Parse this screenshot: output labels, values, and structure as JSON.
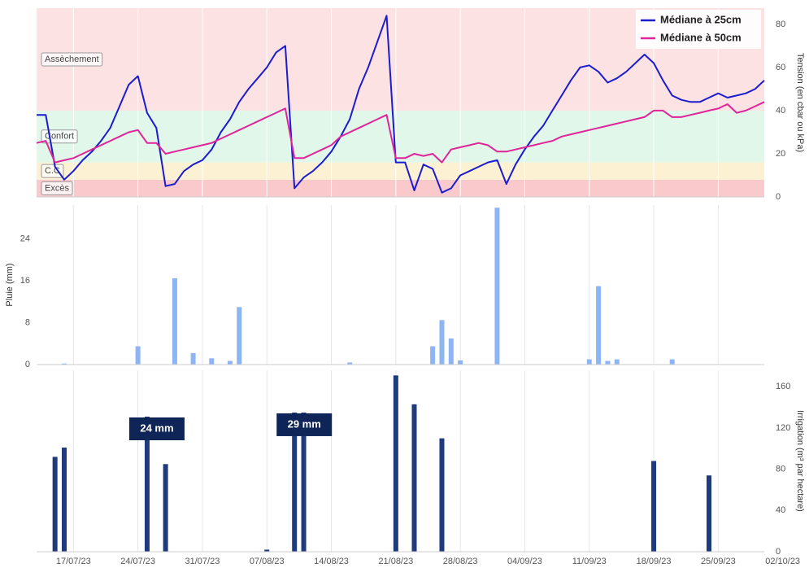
{
  "chart_data": [
    {
      "type": "line",
      "ylabel": "Tension (en cbar ou kPa)",
      "yaxis": "right",
      "legend": "upper right",
      "xlim": [
        "2023-07-13",
        "2023-09-30"
      ],
      "ylim": [
        0,
        87.5
      ],
      "yticks": [
        0,
        20,
        40,
        60,
        80
      ],
      "zones": [
        {
          "label": "Excès",
          "from": 0,
          "color": "#f9c9cc"
        },
        {
          "label": "C.C",
          "from": 8,
          "color": "#fdf1d4"
        },
        {
          "label": "Confort",
          "from": 16,
          "color": "#e0f7ea"
        },
        {
          "label": "Assèchement",
          "from": 40,
          "color": "#fde2e3"
        }
      ],
      "x": [
        "2023-07-13",
        "2023-07-14",
        "2023-07-15",
        "2023-07-16",
        "2023-07-17",
        "2023-07-18",
        "2023-07-19",
        "2023-07-20",
        "2023-07-21",
        "2023-07-22",
        "2023-07-23",
        "2023-07-24",
        "2023-07-25",
        "2023-07-26",
        "2023-07-27",
        "2023-07-28",
        "2023-07-29",
        "2023-07-30",
        "2023-07-31",
        "2023-08-01",
        "2023-08-02",
        "2023-08-03",
        "2023-08-04",
        "2023-08-05",
        "2023-08-06",
        "2023-08-07",
        "2023-08-08",
        "2023-08-09",
        "2023-08-10",
        "2023-08-11",
        "2023-08-12",
        "2023-08-13",
        "2023-08-14",
        "2023-08-15",
        "2023-08-16",
        "2023-08-17",
        "2023-08-18",
        "2023-08-19",
        "2023-08-20",
        "2023-08-21",
        "2023-08-22",
        "2023-08-23",
        "2023-08-24",
        "2023-08-25",
        "2023-08-26",
        "2023-08-27",
        "2023-08-28",
        "2023-08-29",
        "2023-08-30",
        "2023-08-31",
        "2023-09-01",
        "2023-09-02",
        "2023-09-03",
        "2023-09-04",
        "2023-09-05",
        "2023-09-06",
        "2023-09-07",
        "2023-09-08",
        "2023-09-09",
        "2023-09-10",
        "2023-09-11",
        "2023-09-12",
        "2023-09-13",
        "2023-09-14",
        "2023-09-15",
        "2023-09-16",
        "2023-09-17",
        "2023-09-18",
        "2023-09-19",
        "2023-09-20",
        "2023-09-21",
        "2023-09-22",
        "2023-09-23",
        "2023-09-24",
        "2023-09-25",
        "2023-09-26",
        "2023-09-27",
        "2023-09-28",
        "2023-09-29",
        "2023-09-30"
      ],
      "series": [
        {
          "name": "Médiane à 25cm",
          "color": "#1c1ccf",
          "values": [
            38,
            38,
            14,
            8,
            12,
            17,
            21,
            26,
            32,
            42,
            52,
            56,
            39,
            32,
            5,
            6,
            12,
            15,
            17,
            22,
            30,
            36,
            44,
            50,
            55,
            60,
            67,
            70,
            4,
            9,
            12,
            16,
            21,
            28,
            36,
            50,
            60,
            72,
            84,
            16,
            16,
            3,
            15,
            13,
            2,
            4,
            10,
            12,
            14,
            16,
            17,
            6,
            15,
            22,
            28,
            33,
            40,
            47,
            54,
            60,
            61,
            58,
            53,
            55,
            58,
            62,
            66,
            62,
            54,
            47,
            45,
            44,
            44,
            46,
            48,
            46,
            47,
            48,
            50,
            54
          ]
        },
        {
          "name": "Médiane à 50cm",
          "color": "#e0249a",
          "values": [
            25,
            26,
            16,
            17,
            18,
            20,
            22,
            24,
            26,
            28,
            30,
            31,
            25,
            25,
            20,
            21,
            22,
            23,
            24,
            25,
            27,
            29,
            31,
            33,
            35,
            37,
            39,
            41,
            18,
            18,
            20,
            22,
            24,
            28,
            30,
            32,
            34,
            36,
            38,
            18,
            18,
            20,
            19,
            20,
            16,
            22,
            23,
            24,
            25,
            24,
            21,
            21,
            22,
            23,
            24,
            25,
            26,
            28,
            29,
            30,
            31,
            32,
            33,
            34,
            35,
            36,
            37,
            40,
            40,
            37,
            37,
            38,
            39,
            40,
            41,
            43,
            39,
            40,
            42,
            44
          ]
        }
      ]
    },
    {
      "type": "bar",
      "ylabel": "Pluie (mm)",
      "yaxis": "left",
      "color": "#8db4f5",
      "xlim": [
        "2023-07-13",
        "2023-09-30"
      ],
      "ylim": [
        0,
        30.5
      ],
      "yticks": [
        0,
        8,
        16,
        24
      ],
      "x": [
        "2023-07-16",
        "2023-07-24",
        "2023-07-28",
        "2023-07-30",
        "2023-08-01",
        "2023-08-03",
        "2023-08-04",
        "2023-08-16",
        "2023-08-25",
        "2023-08-26",
        "2023-08-27",
        "2023-08-28",
        "2023-09-01",
        "2023-09-11",
        "2023-09-12",
        "2023-09-13",
        "2023-09-14",
        "2023-09-20"
      ],
      "values": [
        0.2,
        3.5,
        16.5,
        2.2,
        1.2,
        0.7,
        11,
        0.4,
        3.5,
        8.5,
        5,
        0.8,
        30,
        1,
        15,
        0.7,
        1,
        1
      ]
    },
    {
      "type": "bar",
      "ylabel": "Irrigation (m³ par hectare)",
      "yaxis": "right",
      "color": "#1f3a7d",
      "xlim": [
        "2023-07-13",
        "2023-09-30"
      ],
      "ylim": [
        0,
        176
      ],
      "yticks": [
        0,
        40,
        80,
        120,
        160
      ],
      "x": [
        "2023-07-15",
        "2023-07-16",
        "2023-07-25",
        "2023-07-27",
        "2023-08-07",
        "2023-08-10",
        "2023-08-11",
        "2023-08-21",
        "2023-08-23",
        "2023-08-26",
        "2023-09-18",
        "2023-09-24"
      ],
      "values": [
        92,
        101,
        131,
        85,
        2,
        135,
        135,
        171,
        143,
        110,
        88,
        74
      ],
      "annotations": [
        {
          "text": "24 mm",
          "x": "2023-07-25"
        },
        {
          "text": "29 mm",
          "x": "2023-08-10"
        }
      ],
      "xticks": [
        {
          "value": "2023-07-17",
          "label": "17/07/23"
        },
        {
          "value": "2023-07-24",
          "label": "24/07/23"
        },
        {
          "value": "2023-07-31",
          "label": "31/07/23"
        },
        {
          "value": "2023-08-07",
          "label": "07/08/23"
        },
        {
          "value": "2023-08-14",
          "label": "14/08/23"
        },
        {
          "value": "2023-08-21",
          "label": "21/08/23"
        },
        {
          "value": "2023-08-28",
          "label": "28/08/23"
        },
        {
          "value": "2023-09-04",
          "label": "04/09/23"
        },
        {
          "value": "2023-09-11",
          "label": "11/09/23"
        },
        {
          "value": "2023-09-18",
          "label": "18/09/23"
        },
        {
          "value": "2023-09-25",
          "label": "25/09/23"
        },
        {
          "value": "2023-10-02",
          "label": "02/10/23"
        }
      ]
    }
  ]
}
